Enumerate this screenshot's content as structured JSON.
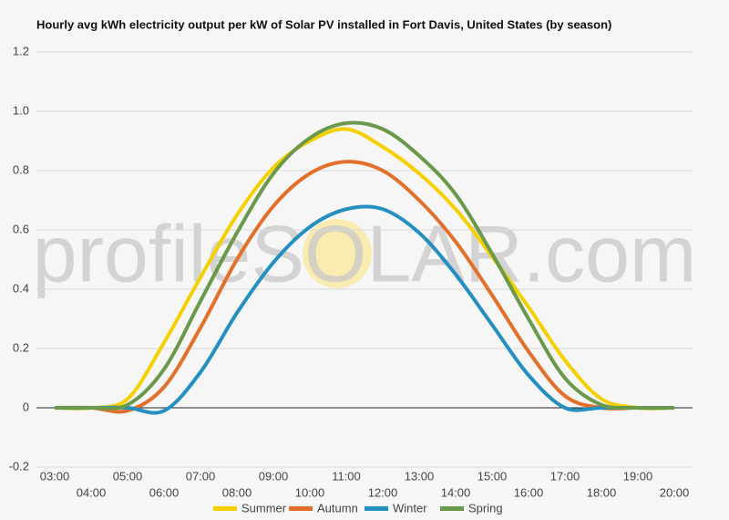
{
  "chart_data": {
    "type": "line",
    "title": "Hourly avg kWh electricity output per kW of Solar PV installed in Fort Davis, United States (by season)",
    "watermark": "profileSOLAR.com",
    "categories": [
      "03:00",
      "04:00",
      "05:00",
      "06:00",
      "07:00",
      "08:00",
      "09:00",
      "10:00",
      "11:00",
      "12:00",
      "13:00",
      "14:00",
      "15:00",
      "16:00",
      "17:00",
      "18:00",
      "19:00",
      "20:00"
    ],
    "series": [
      {
        "name": "Summer",
        "color": "#f5d000",
        "values": [
          0,
          0,
          0.03,
          0.22,
          0.44,
          0.65,
          0.81,
          0.9,
          0.94,
          0.88,
          0.79,
          0.67,
          0.51,
          0.34,
          0.16,
          0.03,
          0,
          0
        ]
      },
      {
        "name": "Autumn",
        "color": "#e2702a",
        "values": [
          0,
          0,
          -0.01,
          0.07,
          0.27,
          0.5,
          0.68,
          0.79,
          0.83,
          0.8,
          0.7,
          0.56,
          0.38,
          0.19,
          0.04,
          0,
          0,
          0
        ]
      },
      {
        "name": "Winter",
        "color": "#2490c0",
        "values": [
          0,
          0,
          0,
          -0.01,
          0.12,
          0.32,
          0.49,
          0.61,
          0.67,
          0.67,
          0.59,
          0.45,
          0.28,
          0.11,
          0,
          0,
          0,
          0
        ]
      },
      {
        "name": "Spring",
        "color": "#6a994a",
        "values": [
          0,
          0,
          0.01,
          0.13,
          0.36,
          0.59,
          0.79,
          0.91,
          0.96,
          0.94,
          0.85,
          0.72,
          0.52,
          0.3,
          0.1,
          0.01,
          0,
          0
        ]
      }
    ],
    "ylim": [
      -0.2,
      1.2
    ],
    "yticks": [
      -0.2,
      0,
      0.2,
      0.4,
      0.6,
      0.8,
      {
        "value": 1,
        "label": "1.0"
      },
      1.2
    ],
    "grid": true
  }
}
